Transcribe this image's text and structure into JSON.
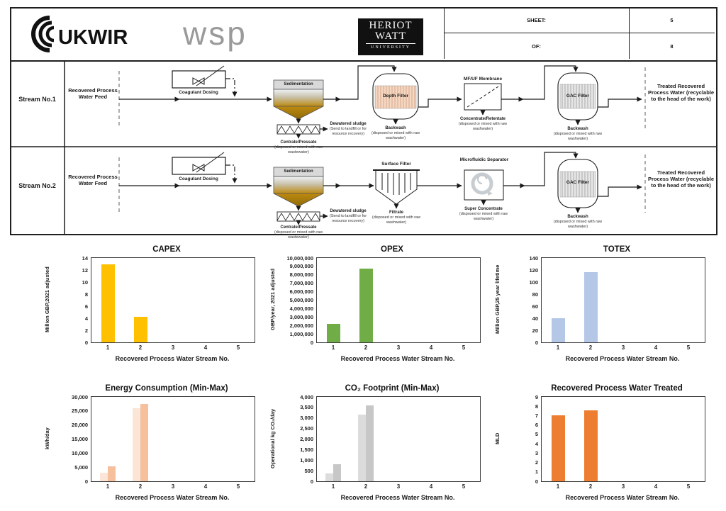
{
  "header": {
    "logos": {
      "ukwir": "UKWIR",
      "wsp": "wsp",
      "heriot_line1": "HERIOT",
      "heriot_line2": "WATT",
      "heriot_line3": "UNIVERSITY"
    },
    "sheet_label": "SHEET:",
    "sheet_value": "5",
    "of_label": "OF:",
    "of_value": "8"
  },
  "diagram": {
    "streams": [
      {
        "label": "Stream No.1",
        "feed": "Recovered Process Water Feed",
        "coagulant": "Coagulant Dosing",
        "sedimentation": "Sedimentation",
        "dewatered_title": "Dewatered sludge",
        "dewatered_note": "(Send to landfill or for resource recovery)",
        "centrate_title": "Centrate/Pressate",
        "centrate_note": "(disposed or mixed with raw wastewater)",
        "filter1": "Depth Filter",
        "filter1_waste_title": "Backwash",
        "filter1_waste_note": "(disposed or mixed with raw washwater)",
        "filter2": "MF/UF Membrane",
        "filter2_waste_title": "Concentrate/Retentate",
        "filter2_waste_note": "(disposed or mixed with raw washwater)",
        "filter3": "GAC Filter",
        "filter3_waste_title": "Backwash",
        "filter3_waste_note": "(disposed or mixed with raw washwater)",
        "treated": "Treated Recovered Process Water (recyclable to the head of the work)"
      },
      {
        "label": "Stream No.2",
        "feed": "Recovered Process Water Feed",
        "coagulant": "Coagulant Dosing",
        "sedimentation": "Sedimentation",
        "dewatered_title": "Dewatered sludge",
        "dewatered_note": "(Send to landfill or for resource recovery)",
        "centrate_title": "Centrate/Pressate",
        "centrate_note": "(disposed or mixed with raw wastewater)",
        "filter1": "Surface Filter",
        "filter1_waste_title": "Filtrate",
        "filter1_waste_note": "(disposed or mixed with raw washwater)",
        "filter2": "Microfluidic Separator",
        "filter2_waste_title": "Super Concentrate",
        "filter2_waste_note": "(disposed or mixed with raw washwater)",
        "filter3": "GAC Filter",
        "filter3_waste_title": "Backwash",
        "filter3_waste_note": "(disposed or mixed with raw washwater)",
        "treated": "Treated Recovered Process Water (recyclable to the head of the work)"
      }
    ]
  },
  "chart_data": [
    {
      "type": "bar",
      "title": "CAPEX",
      "ylabel": "Million GBP,2021 adjusted",
      "xlabel": "Recovered Process Water Stream No.",
      "ylim": [
        0,
        14
      ],
      "yticks": [
        0,
        2,
        4,
        6,
        8,
        10,
        12,
        14
      ],
      "ytick_labels": [
        "0",
        "2",
        "4",
        "6",
        "8",
        "10",
        "12",
        "14"
      ],
      "categories": [
        "1",
        "2",
        "3",
        "4",
        "5"
      ],
      "grid": false,
      "legend": "none",
      "series": [
        {
          "name": "CAPEX",
          "color": "#FFC000",
          "values": [
            13,
            4.2,
            null,
            null,
            null
          ]
        }
      ]
    },
    {
      "type": "bar",
      "title": "OPEX",
      "ylabel": "GBP/year, 2021 adjusted",
      "xlabel": "Recovered Process Water Stream No.",
      "ylim": [
        0,
        10000000
      ],
      "yticks": [
        0,
        1000000,
        2000000,
        3000000,
        4000000,
        5000000,
        6000000,
        7000000,
        8000000,
        9000000,
        10000000
      ],
      "ytick_labels": [
        "0",
        "1,000,000",
        "2,000,000",
        "3,000,000",
        "4,000,000",
        "5,000,000",
        "6,000,000",
        "7,000,000",
        "8,000,000",
        "9,000,000",
        "10,000,000"
      ],
      "categories": [
        "1",
        "2",
        "3",
        "4",
        "5"
      ],
      "grid": false,
      "legend": "none",
      "series": [
        {
          "name": "OPEX",
          "color": "#70AD47",
          "values": [
            2150000,
            8700000,
            null,
            null,
            null
          ]
        }
      ]
    },
    {
      "type": "bar",
      "title": "TOTEX",
      "ylabel": "Million GBP,25 year lifetime",
      "xlabel": "Recovered Process Water Stream No.",
      "ylim": [
        0,
        140
      ],
      "yticks": [
        0,
        20,
        40,
        60,
        80,
        100,
        120,
        140
      ],
      "ytick_labels": [
        "0",
        "20",
        "40",
        "60",
        "80",
        "100",
        "120",
        "140"
      ],
      "categories": [
        "1",
        "2",
        "3",
        "4",
        "5"
      ],
      "grid": false,
      "legend": "none",
      "series": [
        {
          "name": "TOTEX",
          "color": "#B4C7E7",
          "values": [
            40,
            117,
            null,
            null,
            null
          ]
        }
      ]
    },
    {
      "type": "bar",
      "title": "Energy Consumption (Min-Max)",
      "ylabel": "kWh/day",
      "xlabel": "Recovered Process Water Stream No.",
      "ylim": [
        0,
        30000
      ],
      "yticks": [
        0,
        5000,
        10000,
        15000,
        20000,
        25000,
        30000
      ],
      "ytick_labels": [
        "0",
        "5,000",
        "10,000",
        "15,000",
        "20,000",
        "25,000",
        "30,000"
      ],
      "categories": [
        "1",
        "2",
        "3",
        "4",
        "5"
      ],
      "grid": false,
      "legend": "none",
      "series": [
        {
          "name": "Min",
          "color": "#FBE5D6",
          "values": [
            3000,
            26000,
            null,
            null,
            null
          ]
        },
        {
          "name": "Max",
          "color": "#F5C09B",
          "values": [
            5200,
            27500,
            null,
            null,
            null
          ]
        }
      ]
    },
    {
      "type": "bar",
      "title": "CO₂ Footprint (Min-Max)",
      "ylabel": "Operational kg CO₂/day",
      "xlabel": "Recovered Process Water Stream No.",
      "ylim": [
        0,
        4000
      ],
      "yticks": [
        0,
        500,
        1000,
        1500,
        2000,
        2500,
        3000,
        3500,
        4000
      ],
      "ytick_labels": [
        "0",
        "500",
        "1,000",
        "1,500",
        "2,000",
        "2,500",
        "3,000",
        "3,500",
        "4,000"
      ],
      "categories": [
        "1",
        "2",
        "3",
        "4",
        "5"
      ],
      "grid": false,
      "legend": "none",
      "series": [
        {
          "name": "Min",
          "color": "#DCDCDC",
          "values": [
            380,
            3170,
            null,
            null,
            null
          ]
        },
        {
          "name": "Max",
          "color": "#C7C7C7",
          "values": [
            820,
            3590,
            null,
            null,
            null
          ]
        }
      ]
    },
    {
      "type": "bar",
      "title": "Recovered Process Water Treated",
      "ylabel": "MLD",
      "xlabel": "Recovered Process Water Stream No.",
      "ylim": [
        0,
        9
      ],
      "yticks": [
        0,
        1,
        2,
        3,
        4,
        5,
        6,
        7,
        8,
        9
      ],
      "ytick_labels": [
        "0",
        "1",
        "2",
        "3",
        "4",
        "5",
        "6",
        "7",
        "8",
        "9"
      ],
      "categories": [
        "1",
        "2",
        "3",
        "4",
        "5"
      ],
      "grid": false,
      "legend": "none",
      "series": [
        {
          "name": "MLD",
          "color": "#ED7D31",
          "values": [
            7,
            7.6,
            null,
            null,
            null
          ]
        }
      ]
    }
  ]
}
